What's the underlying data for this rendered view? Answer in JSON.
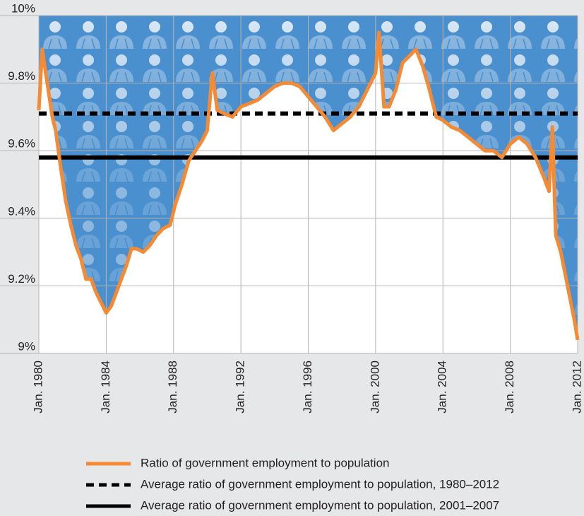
{
  "chart_data": {
    "type": "line",
    "x": [
      1980.0,
      1980.2,
      1980.5,
      1980.8,
      1981.0,
      1981.3,
      1981.6,
      1981.9,
      1982.2,
      1982.5,
      1982.8,
      1983.1,
      1983.4,
      1983.7,
      1984.0,
      1984.3,
      1984.6,
      1984.9,
      1985.2,
      1985.5,
      1985.8,
      1986.2,
      1986.6,
      1987.0,
      1987.4,
      1987.8,
      1988.1,
      1988.5,
      1988.9,
      1989.3,
      1989.7,
      1990.0,
      1990.3,
      1990.6,
      1991.0,
      1991.5,
      1992.0,
      1992.5,
      1993.0,
      1993.5,
      1994.0,
      1994.5,
      1995.0,
      1995.5,
      1996.0,
      1996.5,
      1997.0,
      1997.5,
      1998.0,
      1998.5,
      1999.0,
      1999.5,
      2000.0,
      2000.2,
      2000.5,
      2000.8,
      2001.2,
      2001.6,
      2002.0,
      2002.4,
      2002.8,
      2003.2,
      2003.6,
      2004.0,
      2004.5,
      2005.0,
      2005.5,
      2006.0,
      2006.5,
      2007.0,
      2007.5,
      2008.0,
      2008.5,
      2009.0,
      2009.5,
      2010.0,
      2010.3,
      2010.5,
      2010.7,
      2011.0,
      2011.4,
      2011.8,
      2012.0
    ],
    "series": [
      {
        "name": "Ratio of government employment to population",
        "color": "#f58a34",
        "values": [
          9.72,
          9.9,
          9.8,
          9.7,
          9.66,
          9.55,
          9.45,
          9.38,
          9.32,
          9.28,
          9.22,
          9.22,
          9.18,
          9.15,
          9.12,
          9.14,
          9.18,
          9.22,
          9.26,
          9.31,
          9.31,
          9.3,
          9.32,
          9.35,
          9.37,
          9.38,
          9.44,
          9.5,
          9.57,
          9.6,
          9.63,
          9.66,
          9.83,
          9.72,
          9.71,
          9.7,
          9.73,
          9.74,
          9.75,
          9.77,
          9.79,
          9.8,
          9.8,
          9.79,
          9.76,
          9.73,
          9.7,
          9.66,
          9.68,
          9.7,
          9.73,
          9.78,
          9.83,
          9.95,
          9.73,
          9.73,
          9.78,
          9.86,
          9.88,
          9.9,
          9.85,
          9.78,
          9.7,
          9.69,
          9.67,
          9.66,
          9.64,
          9.62,
          9.6,
          9.6,
          9.58,
          9.62,
          9.64,
          9.62,
          9.58,
          9.52,
          9.48,
          9.67,
          9.35,
          9.3,
          9.2,
          9.1,
          9.04
        ]
      }
    ],
    "reference_lines": [
      {
        "name": "Average ratio of government employment to population, 1980–2012",
        "value": 9.71,
        "color": "#000000",
        "style": "dashed"
      },
      {
        "name": "Average ratio of government employment to population, 2001–2007",
        "value": 9.58,
        "color": "#000000",
        "style": "solid"
      }
    ],
    "xlim": [
      1980,
      2012
    ],
    "xticks": [
      {
        "value": 1980,
        "label": "Jan. 1980"
      },
      {
        "value": 1984,
        "label": "Jan. 1984"
      },
      {
        "value": 1988,
        "label": "Jan. 1988"
      },
      {
        "value": 1992,
        "label": "Jan. 1992"
      },
      {
        "value": 1996,
        "label": "Jan. 1996"
      },
      {
        "value": 2000,
        "label": "Jan. 2000"
      },
      {
        "value": 2004,
        "label": "Jan. 2004"
      },
      {
        "value": 2008,
        "label": "Jan. 2008"
      },
      {
        "value": 2012,
        "label": "Jan. 2012"
      }
    ],
    "ylim": [
      9,
      10
    ],
    "yticks": [
      {
        "value": 9,
        "label": "9%"
      },
      {
        "value": 9.2,
        "label": "9.2%"
      },
      {
        "value": 9.4,
        "label": "9.4%"
      },
      {
        "value": 9.6,
        "label": "9.6%"
      },
      {
        "value": 9.8,
        "label": "9.8%"
      },
      {
        "value": 10,
        "label": "10%"
      }
    ],
    "grid": true,
    "area_color": "#4a8fce"
  }
}
